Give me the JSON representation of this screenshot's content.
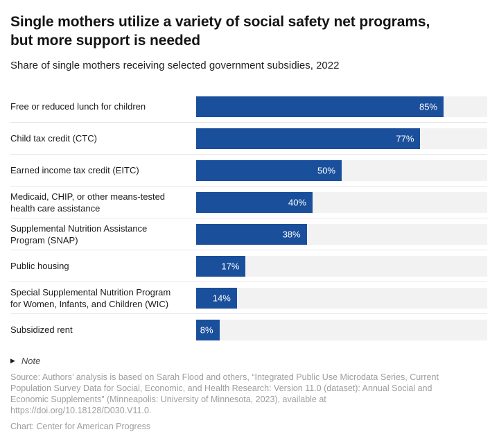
{
  "header": {
    "title": "Single mothers utilize a variety of social safety net programs, but more support is needed",
    "subtitle": "Share of single mothers receiving selected government subsidies, 2022"
  },
  "chart_data": {
    "type": "bar",
    "orientation": "horizontal",
    "title": "Single mothers utilize a variety of social safety net programs, but more support is needed",
    "subtitle": "Share of single mothers receiving selected government subsidies, 2022",
    "categories": [
      "Free or reduced lunch for children",
      "Child tax credit (CTC)",
      "Earned income tax credit (EITC)",
      "Medicaid, CHIP, or other means-tested\nhealth care assistance",
      "Supplemental Nutrition Assistance\nProgram (SNAP)",
      "Public housing",
      "Special Supplemental Nutrition Program\nfor Women, Infants, and Children (WIC)",
      "Subsidized rent"
    ],
    "values": [
      85,
      77,
      50,
      40,
      38,
      17,
      14,
      8
    ],
    "value_labels": [
      "85%",
      "77%",
      "50%",
      "40%",
      "38%",
      "17%",
      "14%",
      "8%"
    ],
    "xlim": [
      0,
      100
    ],
    "grid": false,
    "legend": "none",
    "value_label_position": "inside-right",
    "bar_color": "#1a4f9c",
    "track_color": "#f2f2f2",
    "value_label_color": "#ffffff"
  },
  "footer": {
    "note_icon": "▶",
    "note_label": "Note",
    "source_lines": [
      "Source: Authors’ analysis is based on Sarah Flood and others, “Integrated Public Use Microdata Series, Current",
      "Population Survey Data for Social, Economic, and Health Research: Version 11.0 (dataset): Annual Social and",
      "Economic Supplements” (Minneapolis: University of Minnesota, 2023), available at",
      "https://doi.org/10.18128/D030.V11.0."
    ],
    "credit": "Chart: Center for American Progress"
  }
}
